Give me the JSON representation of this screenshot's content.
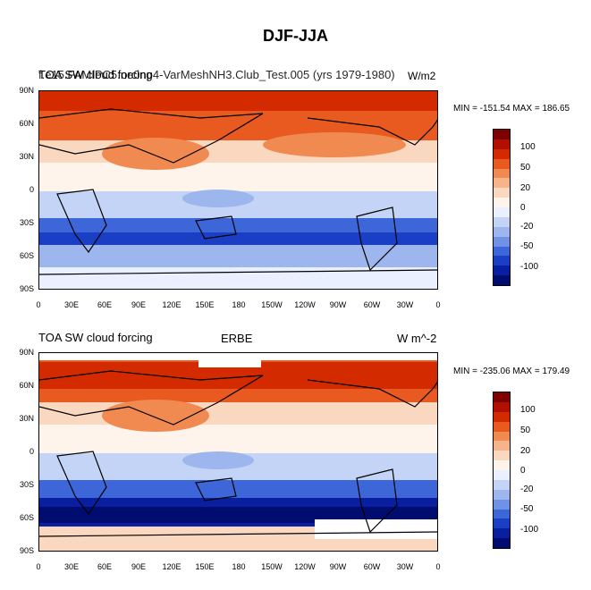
{
  "title": "DJF-JJA",
  "panels": [
    {
      "left_title": "TOA SW cloud forcing",
      "overlay_title": "f.e15.FAMIPC5.ne0np4-VarMeshNH3.Club_Test.005 (yrs 1979-1980)",
      "right_title": "W/m2",
      "center_title": "",
      "minmax": "MIN = -151.54 MAX = 186.65"
    },
    {
      "left_title": "TOA SW cloud forcing",
      "center_title": "ERBE",
      "right_title": "W m^-2",
      "minmax": "MIN = -235.06 MAX = 179.49"
    }
  ],
  "lat_labels": [
    "90N",
    "60N",
    "30N",
    "0",
    "30S",
    "60S",
    "90S"
  ],
  "lon_labels": [
    "0",
    "30E",
    "60E",
    "90E",
    "120E",
    "150E",
    "180",
    "150W",
    "120W",
    "90W",
    "60W",
    "30W",
    "0"
  ],
  "colorbar_labels": [
    "100",
    "50",
    "20",
    "0",
    "-20",
    "-50",
    "-100"
  ],
  "colorbar_colors": [
    "#7f0000",
    "#b01000",
    "#d42a00",
    "#e85a20",
    "#f08a50",
    "#f6b48a",
    "#fad8c0",
    "#fff4ec",
    "#eaf0ff",
    "#c4d4f6",
    "#9db6ee",
    "#6f92e6",
    "#3d66d8",
    "#1a3fc4",
    "#0a1fa0",
    "#000c70"
  ]
}
